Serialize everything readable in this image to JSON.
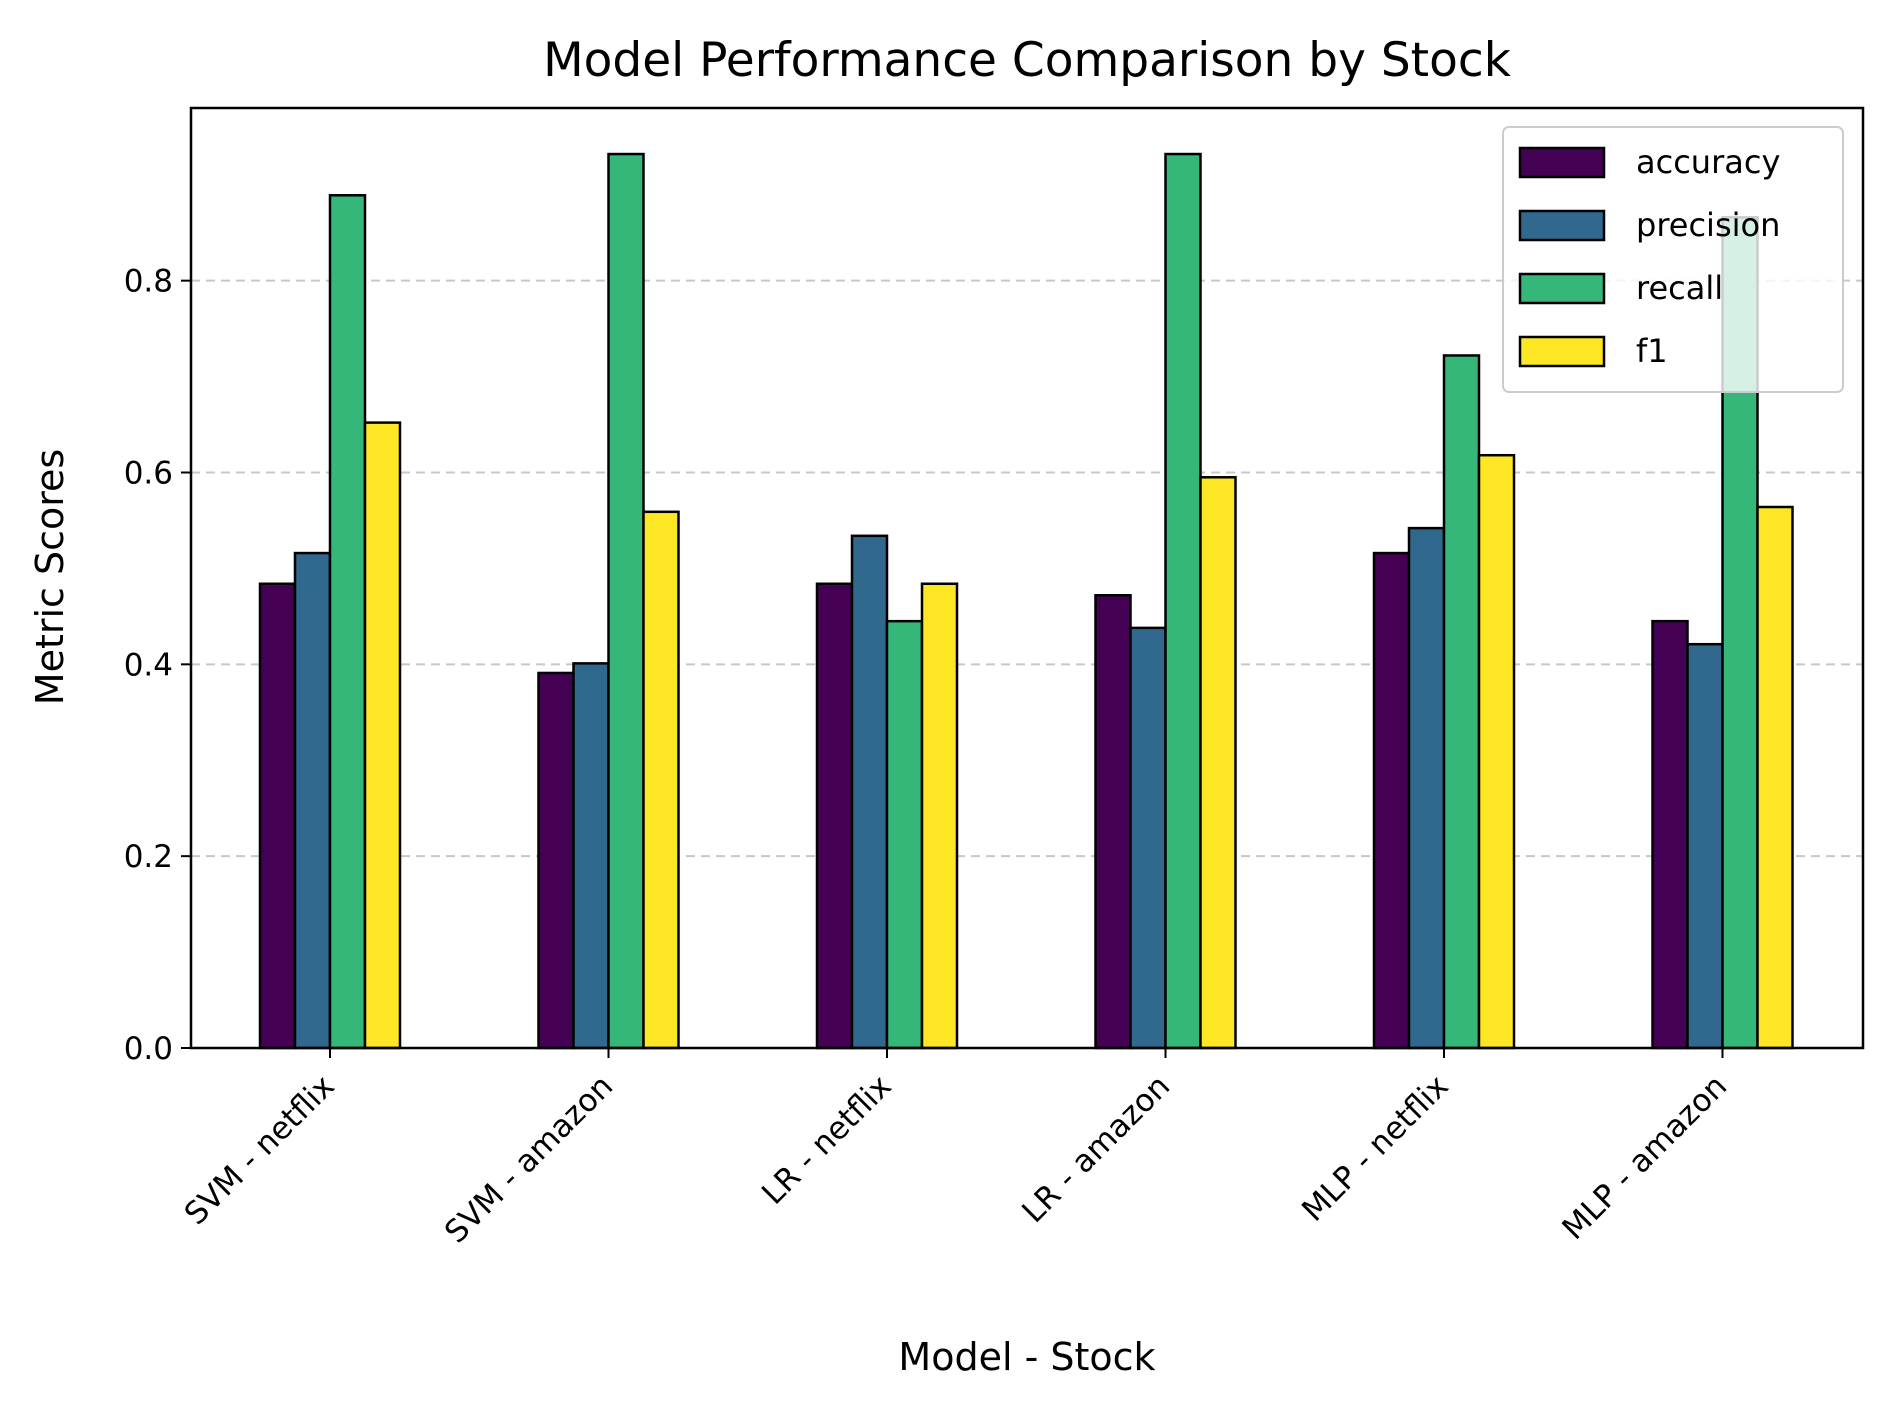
{
  "chart_data": {
    "type": "bar",
    "title": "Model Performance Comparison by Stock",
    "xlabel": "Model - Stock",
    "ylabel": "Metric Scores",
    "categories": [
      "SVM - netflix",
      "SVM - amazon",
      "LR - netflix",
      "LR - amazon",
      "MLP - netflix",
      "MLP - amazon"
    ],
    "series": [
      {
        "name": "accuracy",
        "color": "#440154",
        "values": [
          0.484,
          0.391,
          0.484,
          0.472,
          0.516,
          0.445
        ]
      },
      {
        "name": "precision",
        "color": "#31688e",
        "values": [
          0.516,
          0.401,
          0.534,
          0.438,
          0.542,
          0.421
        ]
      },
      {
        "name": "recall",
        "color": "#35b779",
        "values": [
          0.889,
          0.932,
          0.445,
          0.932,
          0.722,
          0.866
        ]
      },
      {
        "name": "f1",
        "color": "#fde725",
        "values": [
          0.652,
          0.559,
          0.484,
          0.595,
          0.618,
          0.564
        ]
      }
    ],
    "yticks": [
      "0.0",
      "0.2",
      "0.4",
      "0.6",
      "0.8"
    ],
    "ylim": [
      0,
      0.98
    ],
    "grid": "y-dashed",
    "legend": "top-right"
  }
}
